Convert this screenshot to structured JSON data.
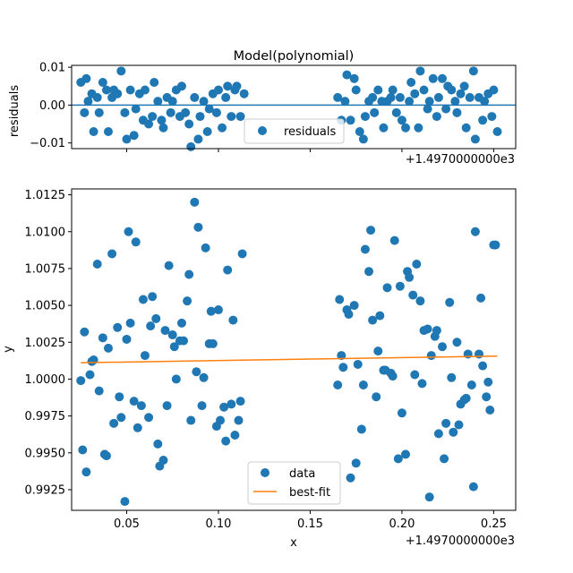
{
  "chart_data": [
    {
      "type": "scatter",
      "title": "Model(polynomial)",
      "xlabel": "",
      "ylabel": "residuals",
      "offset_label": "+1.4970000000e3",
      "xlim": [
        0.02,
        0.262
      ],
      "ylim": [
        -0.0115,
        0.0105
      ],
      "yticks": [
        -0.01,
        0.0,
        0.01
      ],
      "ytick_labels": [
        "−0.01",
        "0.00",
        "0.01"
      ],
      "xticks": [
        0.05,
        0.1,
        0.15,
        0.2,
        0.25
      ],
      "legend": {
        "position": "lower-center",
        "entries": [
          "residuals"
        ]
      },
      "zero_line": 0,
      "colors": {
        "points": "#1f77b4",
        "zero_line": "#1f77b4"
      },
      "series": [
        {
          "name": "residuals",
          "x": [
            0.025,
            0.027,
            0.028,
            0.029,
            0.031,
            0.032,
            0.034,
            0.035,
            0.037,
            0.039,
            0.04,
            0.042,
            0.043,
            0.045,
            0.047,
            0.049,
            0.05,
            0.052,
            0.054,
            0.055,
            0.057,
            0.059,
            0.06,
            0.062,
            0.064,
            0.065,
            0.067,
            0.069,
            0.07,
            0.072,
            0.074,
            0.075,
            0.077,
            0.079,
            0.08,
            0.082,
            0.084,
            0.085,
            0.087,
            0.089,
            0.09,
            0.092,
            0.094,
            0.095,
            0.097,
            0.099,
            0.1,
            0.102,
            0.104,
            0.105,
            0.107,
            0.109,
            0.11,
            0.112,
            0.114,
            0.165,
            0.167,
            0.169,
            0.17,
            0.172,
            0.174,
            0.175,
            0.177,
            0.179,
            0.18,
            0.182,
            0.184,
            0.185,
            0.187,
            0.189,
            0.19,
            0.192,
            0.194,
            0.195,
            0.197,
            0.199,
            0.2,
            0.202,
            0.204,
            0.205,
            0.207,
            0.209,
            0.21,
            0.212,
            0.214,
            0.215,
            0.217,
            0.219,
            0.22,
            0.222,
            0.224,
            0.225,
            0.227,
            0.229,
            0.23,
            0.232,
            0.234,
            0.235,
            0.237,
            0.239,
            0.24,
            0.242,
            0.244,
            0.245,
            0.247,
            0.249,
            0.25,
            0.252
          ],
          "y": [
            0.006,
            -0.002,
            0.007,
            0.001,
            0.003,
            -0.007,
            0.002,
            -0.002,
            0.006,
            0.004,
            -0.007,
            0.002,
            0.004,
            0.003,
            0.009,
            -0.002,
            -0.009,
            0.004,
            -0.008,
            -0.001,
            0.003,
            -0.004,
            0.004,
            -0.005,
            -0.003,
            0.006,
            0.001,
            -0.004,
            -0.006,
            0.002,
            -0.002,
            0.001,
            0.004,
            -0.003,
            0.005,
            -0.002,
            -0.005,
            -0.011,
            0.002,
            -0.009,
            -0.003,
            0.001,
            -0.007,
            -0.001,
            0.003,
            -0.002,
            0.004,
            -0.006,
            0.002,
            0.005,
            -0.003,
            0.004,
            0.005,
            -0.003,
            0.003,
            0.002,
            -0.004,
            0.001,
            0.008,
            -0.004,
            0.007,
            0.004,
            -0.007,
            -0.009,
            -0.003,
            0.001,
            0.002,
            -0.002,
            0.004,
            0.001,
            -0.006,
            0.001,
            0.002,
            0.004,
            -0.002,
            0.002,
            -0.004,
            -0.006,
            0.001,
            0.006,
            0.003,
            -0.006,
            0.009,
            0.004,
            -0.001,
            0.001,
            0.007,
            -0.003,
            0.002,
            0.007,
            -0.001,
            0.005,
            0.004,
            0.001,
            -0.002,
            0.003,
            0.005,
            -0.006,
            0.002,
            0.009,
            -0.009,
            0.002,
            -0.004,
            0.001,
            0.003,
            -0.003,
            0.004,
            -0.007
          ]
        }
      ]
    },
    {
      "type": "scatter",
      "title": "",
      "xlabel": "x",
      "ylabel": "y",
      "offset_label": "+1.4970000000e3",
      "xlim": [
        0.02,
        0.262
      ],
      "ylim": [
        0.9911,
        1.0129
      ],
      "yticks": [
        0.9925,
        0.995,
        0.9975,
        1.0,
        1.0025,
        1.005,
        1.0075,
        1.01,
        1.0125
      ],
      "ytick_labels": [
        "0.9925",
        "0.9950",
        "0.9975",
        "1.0000",
        "1.0025",
        "1.0050",
        "1.0075",
        "1.0100",
        "1.0125"
      ],
      "xticks": [
        0.05,
        0.1,
        0.15,
        0.2,
        0.25
      ],
      "xtick_labels": [
        "0.05",
        "0.10",
        "0.15",
        "0.20",
        "0.25"
      ],
      "legend": {
        "position": "lower-center",
        "entries": [
          "data",
          "best-fit"
        ]
      },
      "colors": {
        "data": "#1f77b4",
        "fit": "#ff7f0e"
      },
      "series": [
        {
          "name": "data",
          "x": [
            0.025,
            0.026,
            0.027,
            0.028,
            0.03,
            0.031,
            0.032,
            0.034,
            0.035,
            0.037,
            0.038,
            0.039,
            0.04,
            0.042,
            0.043,
            0.045,
            0.046,
            0.047,
            0.049,
            0.05,
            0.051,
            0.052,
            0.054,
            0.055,
            0.056,
            0.058,
            0.059,
            0.06,
            0.062,
            0.063,
            0.064,
            0.066,
            0.067,
            0.068,
            0.07,
            0.071,
            0.072,
            0.073,
            0.075,
            0.076,
            0.077,
            0.079,
            0.08,
            0.081,
            0.083,
            0.084,
            0.085,
            0.087,
            0.088,
            0.089,
            0.091,
            0.092,
            0.093,
            0.095,
            0.096,
            0.097,
            0.099,
            0.1,
            0.101,
            0.103,
            0.104,
            0.105,
            0.107,
            0.108,
            0.109,
            0.111,
            0.112,
            0.113,
            0.165,
            0.166,
            0.167,
            0.168,
            0.17,
            0.171,
            0.172,
            0.174,
            0.175,
            0.176,
            0.178,
            0.179,
            0.18,
            0.182,
            0.183,
            0.184,
            0.186,
            0.187,
            0.188,
            0.19,
            0.191,
            0.192,
            0.194,
            0.195,
            0.196,
            0.198,
            0.199,
            0.2,
            0.202,
            0.203,
            0.204,
            0.206,
            0.207,
            0.208,
            0.21,
            0.211,
            0.212,
            0.214,
            0.215,
            0.216,
            0.218,
            0.219,
            0.22,
            0.222,
            0.223,
            0.224,
            0.226,
            0.227,
            0.228,
            0.23,
            0.231,
            0.232,
            0.234,
            0.235,
            0.236,
            0.238,
            0.239,
            0.24,
            0.242,
            0.243,
            0.244,
            0.246,
            0.247,
            0.248,
            0.25,
            0.251
          ],
          "y": [
            0.9999,
            0.9952,
            1.0032,
            0.9937,
            1.0003,
            1.0012,
            1.0013,
            1.0078,
            0.9992,
            1.0028,
            0.9949,
            0.9948,
            1.0021,
            1.0085,
            0.997,
            1.0035,
            0.9988,
            0.9974,
            0.9917,
            1.0027,
            1.01,
            1.0038,
            0.9985,
            1.0093,
            0.9967,
            0.9982,
            1.0054,
            1.0016,
            0.9974,
            1.0036,
            1.0056,
            1.0041,
            0.9956,
            0.9941,
            0.9945,
            1.0033,
            0.9982,
            1.0077,
            1.003,
            1.0022,
            1.0,
            1.0026,
            1.0038,
            1.0026,
            1.0053,
            1.0071,
            0.9972,
            1.012,
            1.0005,
            1.0103,
            0.9982,
            1.0001,
            1.0089,
            1.0024,
            1.0046,
            1.0024,
            0.9968,
            1.0047,
            0.9972,
            0.9981,
            0.9958,
            1.0074,
            0.9983,
            1.004,
            0.9962,
            0.9972,
            0.9985,
            1.0085,
            0.9996,
            1.0054,
            1.0016,
            1.0008,
            1.0047,
            1.0044,
            0.9933,
            1.005,
            0.9943,
            1.001,
            0.9966,
            0.9996,
            1.0088,
            1.0073,
            1.0101,
            1.004,
            0.9988,
            1.0019,
            1.0043,
            1.0006,
            1.0006,
            1.0062,
            1.0004,
            1.0002,
            1.0094,
            0.9946,
            1.0063,
            0.9977,
            0.9949,
            1.0073,
            1.0069,
            1.0057,
            1.0003,
            1.0078,
            1.0053,
            0.9997,
            1.0033,
            1.0034,
            0.992,
            1.0016,
            1.0029,
            1.0033,
            0.9963,
            1.0022,
            0.9946,
            0.997,
            1.0052,
            1.0001,
            0.9964,
            1.0025,
            0.9969,
            0.9983,
            0.9986,
            0.9987,
            1.0017,
            0.9996,
            0.9927,
            1.01,
            1.0017,
            1.0055,
            1.0009,
            0.9988,
            0.9998,
            0.9979,
            1.0091,
            1.0091
          ]
        },
        {
          "name": "best-fit",
          "x": [
            0.025,
            0.252
          ],
          "y": [
            1.00111,
            1.00156
          ]
        }
      ]
    }
  ]
}
